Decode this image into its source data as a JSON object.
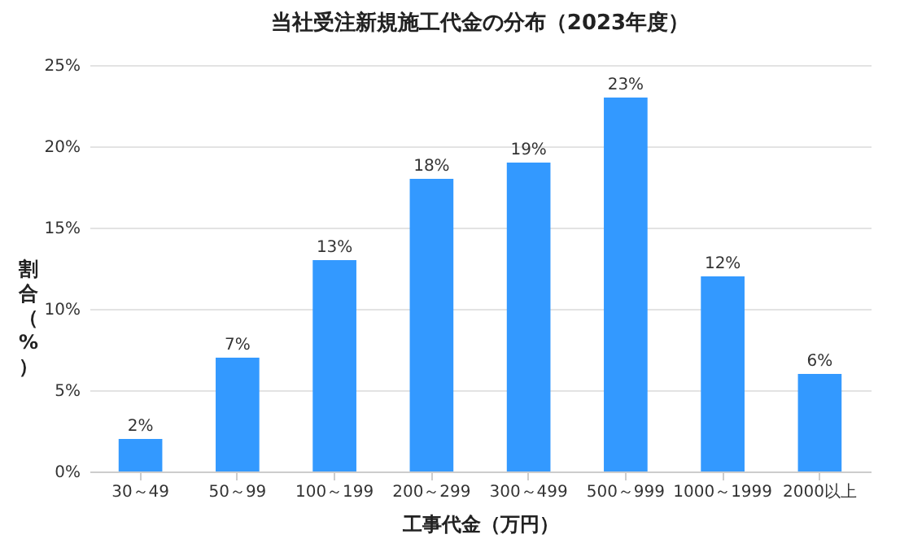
{
  "chart_data": {
    "type": "bar",
    "title": "当社受注新規施工代金の分布（2023年度）",
    "xlabel": "工事代金（万円）",
    "ylabel": "割合（%）",
    "categories": [
      "30～49",
      "50～99",
      "100～199",
      "200～299",
      "300～499",
      "500～999",
      "1000～1999",
      "2000以上"
    ],
    "values": [
      2,
      7,
      13,
      18,
      19,
      23,
      12,
      6
    ],
    "value_labels": [
      "2%",
      "7%",
      "13%",
      "18%",
      "19%",
      "23%",
      "12%",
      "6%"
    ],
    "color": "#3399ff",
    "ylim": [
      0,
      25
    ],
    "yticks": [
      {
        "value": 0,
        "label": "0%"
      },
      {
        "value": 5,
        "label": "5%"
      },
      {
        "value": 10,
        "label": "10%"
      },
      {
        "value": 15,
        "label": "15%"
      },
      {
        "value": 20,
        "label": "20%"
      },
      {
        "value": 25,
        "label": "25%"
      }
    ],
    "grid": "y"
  }
}
